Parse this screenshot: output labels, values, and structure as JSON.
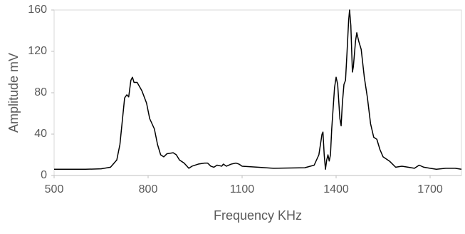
{
  "chart_data": {
    "type": "line",
    "x_label": "Frequency KHz",
    "y_label": "Amplitude mV",
    "xlim": [
      500,
      1800
    ],
    "xticks": [
      500,
      800,
      1100,
      1400,
      1700
    ],
    "ylim": [
      0,
      160
    ],
    "yticks": [
      0,
      40,
      80,
      120,
      160
    ],
    "series": [
      {
        "color": "#000000",
        "x": [
          500,
          600,
          650,
          680,
          700,
          710,
          720,
          725,
          732,
          738,
          745,
          750,
          755,
          765,
          780,
          795,
          805,
          820,
          830,
          840,
          850,
          860,
          880,
          890,
          900,
          915,
          930,
          940,
          960,
          980,
          990,
          1000,
          1010,
          1020,
          1035,
          1040,
          1050,
          1065,
          1080,
          1090,
          1100,
          1150,
          1200,
          1300,
          1330,
          1345,
          1355,
          1358,
          1362,
          1366,
          1370,
          1374,
          1378,
          1382,
          1386,
          1395,
          1400,
          1405,
          1412,
          1416,
          1420,
          1425,
          1430,
          1435,
          1440,
          1443,
          1447,
          1452,
          1455,
          1462,
          1466,
          1472,
          1480,
          1490,
          1500,
          1510,
          1520,
          1530,
          1540,
          1550,
          1570,
          1590,
          1610,
          1630,
          1650,
          1665,
          1680,
          1700,
          1720,
          1750,
          1780,
          1800
        ],
        "values": [
          6,
          6,
          6.5,
          8,
          15,
          30,
          60,
          75,
          78,
          76,
          92,
          95,
          90,
          90,
          82,
          70,
          55,
          45,
          30,
          20,
          18,
          21,
          22,
          20,
          15,
          12,
          7,
          9,
          11,
          12,
          12,
          9,
          8,
          10,
          9,
          11,
          9,
          11,
          12,
          11,
          9,
          8,
          7,
          7.5,
          10,
          20,
          40,
          42,
          20,
          6,
          15,
          20,
          14,
          20,
          45,
          85,
          95,
          88,
          55,
          48,
          70,
          88,
          92,
          120,
          150,
          160,
          145,
          100,
          105,
          130,
          138,
          130,
          122,
          95,
          75,
          50,
          37,
          35,
          25,
          18,
          14,
          8,
          9,
          8,
          7,
          10,
          8,
          7,
          6,
          7,
          7,
          6
        ]
      }
    ]
  }
}
